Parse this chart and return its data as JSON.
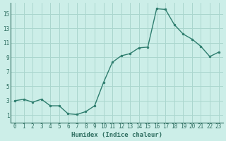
{
  "x": [
    0,
    1,
    2,
    3,
    4,
    5,
    6,
    7,
    8,
    9,
    10,
    11,
    12,
    13,
    14,
    15,
    16,
    17,
    18,
    19,
    20,
    21,
    22,
    23
  ],
  "y": [
    3.0,
    3.2,
    2.8,
    3.2,
    2.3,
    2.3,
    1.2,
    1.1,
    1.5,
    2.3,
    5.5,
    8.3,
    9.2,
    9.5,
    10.3,
    10.4,
    15.7,
    15.6,
    13.5,
    12.2,
    11.5,
    10.5,
    9.1,
    9.7
  ],
  "line_color": "#2e7d6e",
  "marker": "o",
  "marker_size": 2.0,
  "bg_color": "#cceee8",
  "grid_color": "#aad6ce",
  "xlabel": "Humidex (Indice chaleur)",
  "xlim": [
    -0.5,
    23.5
  ],
  "ylim": [
    0.0,
    16.5
  ],
  "xticks": [
    0,
    1,
    2,
    3,
    4,
    5,
    6,
    7,
    8,
    9,
    10,
    11,
    12,
    13,
    14,
    15,
    16,
    17,
    18,
    19,
    20,
    21,
    22,
    23
  ],
  "yticks": [
    1,
    3,
    5,
    7,
    9,
    11,
    13,
    15
  ],
  "tick_fontsize": 5.5,
  "xlabel_fontsize": 6.5,
  "label_color": "#2e6e60",
  "linewidth": 1.0
}
